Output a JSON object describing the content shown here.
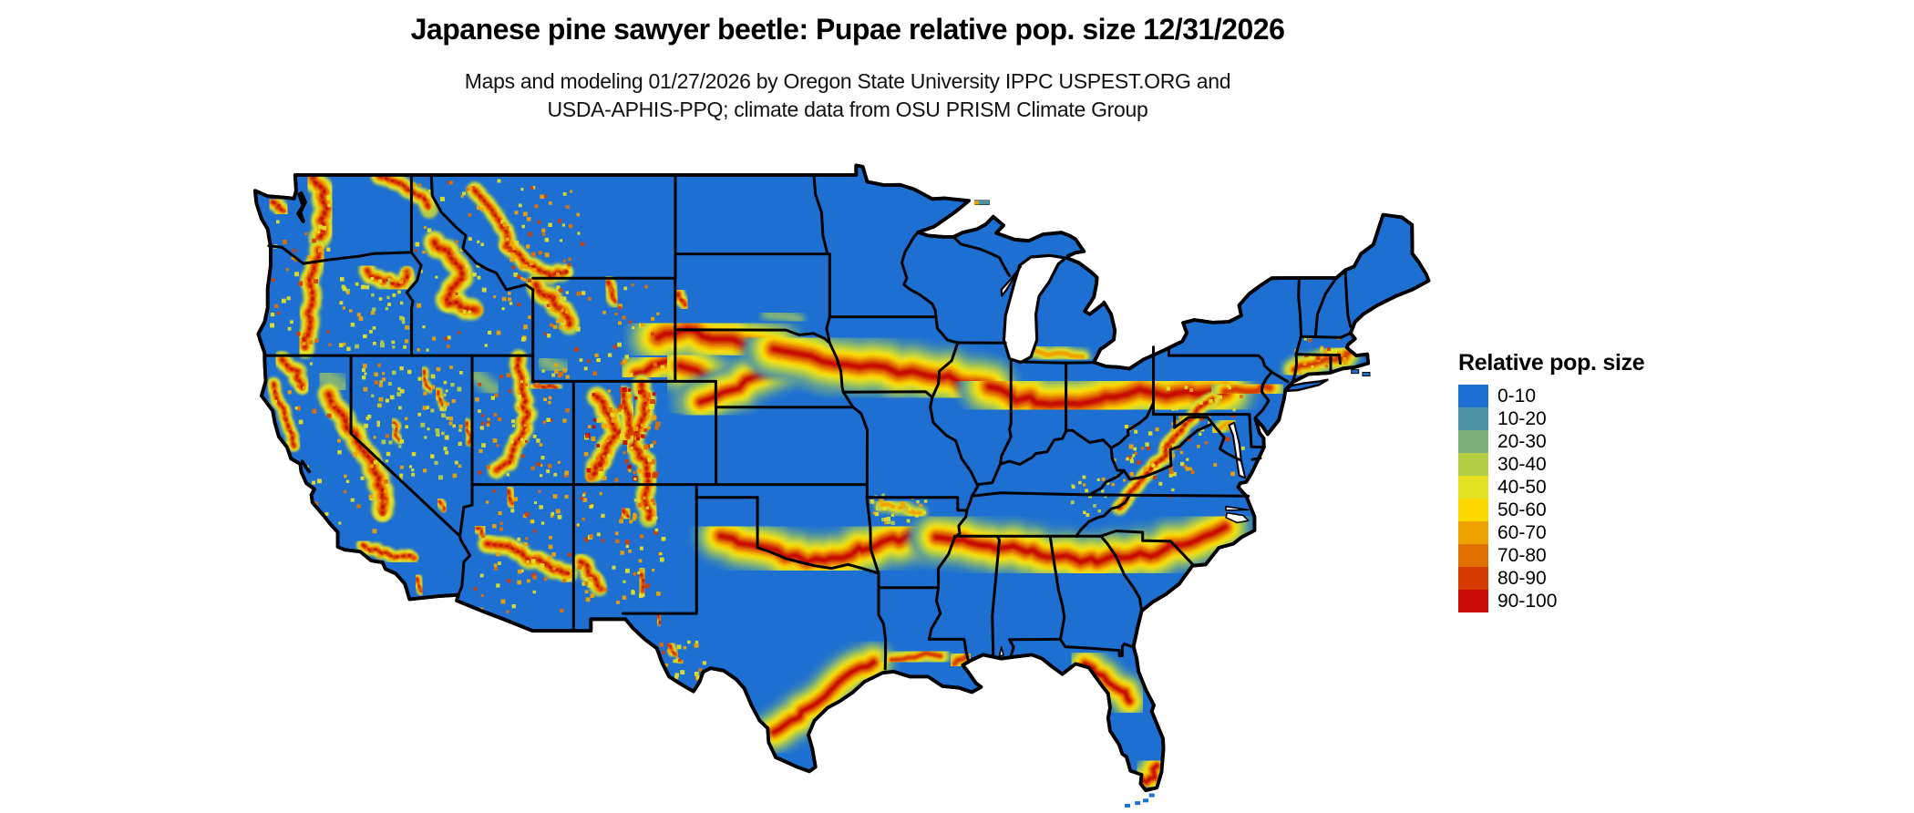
{
  "title": "Japanese pine sawyer beetle: Pupae relative pop. size 12/31/2026",
  "subtitle": {
    "line1": "Maps and modeling 01/27/2026 by Oregon State University IPPC USPEST.ORG and",
    "line2": "USDA-APHIS-PPQ; climate data from OSU PRISM Climate Group"
  },
  "legend": {
    "title": "Relative pop. size",
    "items": [
      {
        "label": "0-10",
        "color": "#1D6FD1"
      },
      {
        "label": "10-20",
        "color": "#4E93A5"
      },
      {
        "label": "20-30",
        "color": "#7FB07A"
      },
      {
        "label": "30-40",
        "color": "#B6CE45"
      },
      {
        "label": "40-50",
        "color": "#E4E125"
      },
      {
        "label": "50-60",
        "color": "#FBD800"
      },
      {
        "label": "60-70",
        "color": "#EFA301"
      },
      {
        "label": "70-80",
        "color": "#E27000"
      },
      {
        "label": "80-90",
        "color": "#D63C00"
      },
      {
        "label": "90-100",
        "color": "#C70A06"
      }
    ]
  },
  "map": {
    "land_base_color": "#1D6FD1",
    "boundary_color": "#000000",
    "water_color": "#FFFFFF"
  }
}
